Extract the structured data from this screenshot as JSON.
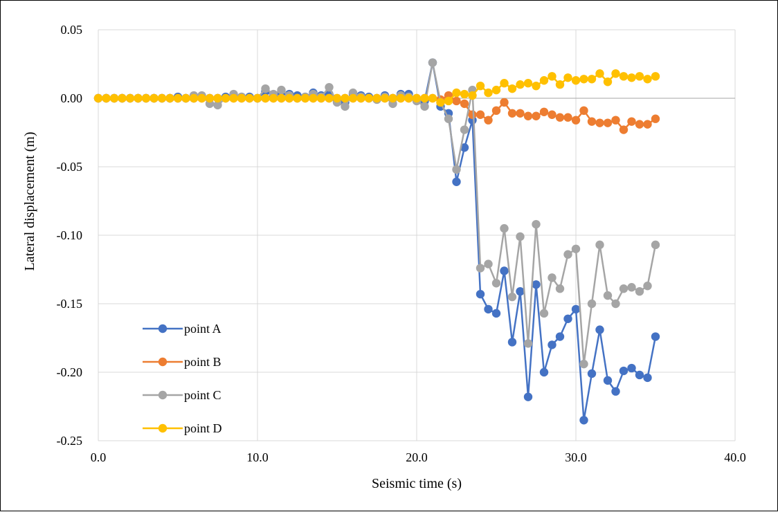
{
  "chart_data": {
    "type": "line",
    "title": "",
    "xlabel": "Seismic time (s)",
    "ylabel": "Lateral displacement (m)",
    "xlim": [
      0,
      40
    ],
    "ylim": [
      -0.25,
      0.05
    ],
    "x_ticks": [
      "0.0",
      "10.0",
      "20.0",
      "30.0",
      "40.0"
    ],
    "y_ticks": [
      "0.05",
      "0.00",
      "-0.05",
      "-0.10",
      "-0.15",
      "-0.20",
      "-0.25"
    ],
    "grid": true,
    "legend_position": "bottom-left",
    "x": [
      0,
      0.5,
      1,
      1.5,
      2,
      2.5,
      3,
      3.5,
      4,
      4.5,
      5,
      5.5,
      6,
      6.5,
      7,
      7.5,
      8,
      8.5,
      9,
      9.5,
      10,
      10.5,
      11,
      11.5,
      12,
      12.5,
      13,
      13.5,
      14,
      14.5,
      15,
      15.5,
      16,
      16.5,
      17,
      17.5,
      18,
      18.5,
      19,
      19.5,
      20,
      20.5,
      21,
      21.5,
      22,
      22.5,
      23,
      23.5,
      24,
      24.5,
      25,
      25.5,
      26,
      26.5,
      27,
      27.5,
      28,
      28.5,
      29,
      29.5,
      30,
      30.5,
      31,
      31.5,
      32,
      32.5,
      33,
      33.5,
      34,
      34.5,
      35
    ],
    "series": [
      {
        "name": "point A",
        "color": "#4472C4",
        "values": [
          0,
          0,
          0,
          0,
          0,
          0,
          0,
          0,
          0,
          0,
          0.001,
          0,
          0,
          0.001,
          0,
          0,
          0.001,
          0.002,
          0.001,
          0.001,
          0,
          0.005,
          0.002,
          0.004,
          0.003,
          0.002,
          0.001,
          0.004,
          0.002,
          0.003,
          -0.002,
          -0.003,
          0.003,
          0.002,
          0.001,
          0,
          0.002,
          0,
          0.003,
          0.003,
          -0.001,
          -0.002,
          0.026,
          -0.006,
          -0.011,
          -0.061,
          -0.036,
          -0.016,
          -0.143,
          -0.154,
          -0.157,
          -0.126,
          -0.178,
          -0.141,
          -0.218,
          -0.136,
          -0.2,
          -0.18,
          -0.174,
          -0.161,
          -0.154,
          -0.235,
          -0.201,
          -0.169,
          -0.206,
          -0.214,
          -0.199,
          -0.197,
          -0.202,
          -0.204,
          -0.174
        ]
      },
      {
        "name": "point B",
        "color": "#ED7D31",
        "values": [
          0,
          0,
          0,
          0,
          0,
          0,
          0,
          0,
          0,
          0,
          0,
          0,
          0,
          0,
          0,
          0,
          0,
          0,
          0,
          0,
          0,
          0,
          0,
          0,
          0,
          0,
          0,
          0,
          0,
          0,
          0,
          0,
          0,
          0,
          0,
          0,
          0,
          0,
          0,
          0,
          0,
          0,
          0,
          -0.001,
          0.002,
          -0.002,
          -0.004,
          -0.012,
          -0.012,
          -0.016,
          -0.009,
          -0.003,
          -0.011,
          -0.011,
          -0.013,
          -0.013,
          -0.01,
          -0.012,
          -0.014,
          -0.014,
          -0.016,
          -0.009,
          -0.017,
          -0.018,
          -0.018,
          -0.016,
          -0.023,
          -0.017,
          -0.019,
          -0.019,
          -0.015
        ]
      },
      {
        "name": "point C",
        "color": "#A5A5A5",
        "values": [
          0,
          0,
          0,
          0,
          0,
          0,
          0,
          0,
          0,
          0,
          0,
          0,
          0.002,
          0.002,
          -0.004,
          -0.005,
          0,
          0.003,
          0.001,
          0,
          0,
          0.007,
          0.003,
          0.006,
          0.002,
          0,
          0.001,
          0.003,
          0.001,
          0.008,
          -0.003,
          -0.006,
          0.004,
          0.001,
          0,
          -0.001,
          0.001,
          -0.004,
          0.002,
          0.001,
          -0.002,
          -0.006,
          0.026,
          -0.003,
          -0.015,
          -0.052,
          -0.023,
          0.006,
          -0.124,
          -0.121,
          -0.135,
          -0.095,
          -0.145,
          -0.101,
          -0.179,
          -0.092,
          -0.157,
          -0.131,
          -0.139,
          -0.114,
          -0.11,
          -0.194,
          -0.15,
          -0.107,
          -0.144,
          -0.15,
          -0.139,
          -0.138,
          -0.141,
          -0.137,
          -0.107
        ]
      },
      {
        "name": "point D",
        "color": "#FFC000",
        "values": [
          0,
          0,
          0,
          0,
          0,
          0,
          0,
          0,
          0,
          0,
          0,
          0,
          0,
          0,
          0,
          0,
          0,
          0,
          0,
          0,
          0,
          0,
          0,
          0,
          0,
          0,
          0,
          0,
          0,
          0,
          0,
          0,
          0,
          0,
          0,
          0,
          0,
          0,
          0,
          0,
          0,
          0,
          0,
          -0.003,
          -0.002,
          0.004,
          0.003,
          0.002,
          0.009,
          0.004,
          0.006,
          0.011,
          0.007,
          0.01,
          0.011,
          0.009,
          0.013,
          0.016,
          0.01,
          0.015,
          0.013,
          0.014,
          0.014,
          0.018,
          0.012,
          0.018,
          0.016,
          0.015,
          0.016,
          0.014,
          0.016
        ]
      }
    ]
  }
}
